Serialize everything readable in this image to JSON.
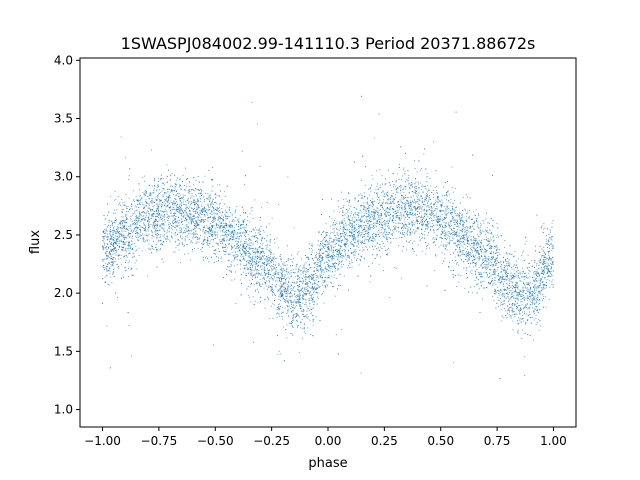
{
  "chart_data": {
    "type": "scatter",
    "title": "1SWASPJ084002.99-141110.3 Period 20371.88672s",
    "xlabel": "phase",
    "ylabel": "flux",
    "xlim": [
      -1.1,
      1.1
    ],
    "ylim": [
      0.85,
      4.02
    ],
    "xticks": [
      -1.0,
      -0.75,
      -0.5,
      -0.25,
      0.0,
      0.25,
      0.5,
      0.75,
      1.0
    ],
    "xtick_labels": [
      "−1.00",
      "−0.75",
      "−0.50",
      "−0.25",
      "0.00",
      "0.25",
      "0.50",
      "0.75",
      "1.00"
    ],
    "yticks": [
      1.0,
      1.5,
      2.0,
      2.5,
      3.0,
      3.5,
      4.0
    ],
    "ytick_labels": [
      "1.0",
      "1.5",
      "2.0",
      "2.5",
      "3.0",
      "3.5",
      "4.0"
    ],
    "grid": false,
    "point_color": "#1f77b4",
    "series": [
      {
        "x_range": [
          -1.0,
          1.0
        ],
        "curve_x": [
          -1.0,
          -0.9,
          -0.8,
          -0.7,
          -0.6,
          -0.5,
          -0.4,
          -0.3,
          -0.2,
          -0.15,
          -0.1,
          0.0,
          0.1,
          0.2,
          0.3,
          0.4,
          0.5,
          0.6,
          0.7,
          0.8,
          0.85,
          0.9,
          1.0
        ],
        "curve_y": [
          2.35,
          2.52,
          2.65,
          2.72,
          2.68,
          2.58,
          2.45,
          2.28,
          2.05,
          1.97,
          2.03,
          2.3,
          2.5,
          2.62,
          2.72,
          2.72,
          2.62,
          2.45,
          2.3,
          2.08,
          1.98,
          2.02,
          2.32
        ],
        "scatter_spread": 0.15
      }
    ]
  }
}
